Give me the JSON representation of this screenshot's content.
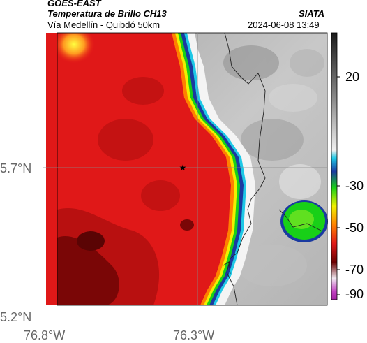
{
  "header": {
    "satellite": "GOES-EAST",
    "product": "Temperatura de Brillo CH13",
    "route": "Vía Medellín - Quibdó 50km",
    "agency": "SIATA",
    "datetime": "2024-06-08 13:49"
  },
  "map": {
    "lat_ticks": [
      "5.7°N",
      "5.2°N"
    ],
    "lon_ticks": [
      "76.8°W",
      "76.3°W"
    ],
    "marker": "star"
  },
  "colorbar": {
    "ticks": [
      "20",
      "-30",
      "-50",
      "-70",
      "-90"
    ],
    "colors": [
      "#1a1a1a",
      "#9a9a9a",
      "#ffffff",
      "#1ec8e6",
      "#1a3aa0",
      "#18d018",
      "#f0f000",
      "#ff8000",
      "#e01818",
      "#6a0000",
      "#ffffff",
      "#c040c0"
    ]
  }
}
